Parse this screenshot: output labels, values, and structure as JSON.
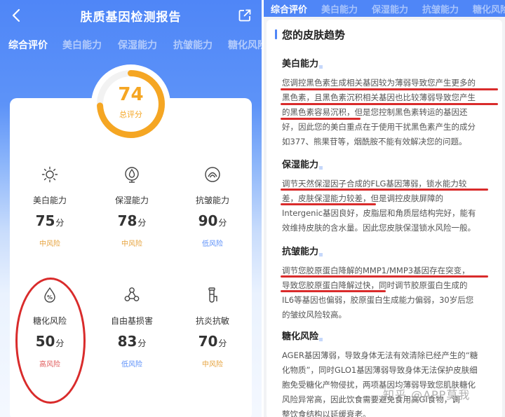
{
  "left": {
    "title": "肤质基因检测报告",
    "tabs": [
      "综合评价",
      "美白能力",
      "保湿能力",
      "抗皱能力",
      "糖化风险"
    ],
    "score": {
      "value": "74",
      "label": "总评分",
      "fraction": 0.74
    },
    "metrics": [
      {
        "icon": "sun-icon",
        "name": "美白能力",
        "score": "75",
        "unit": "分",
        "risk": "中风险",
        "risk_level": "mid"
      },
      {
        "icon": "water-drop-icon",
        "name": "保湿能力",
        "score": "78",
        "unit": "分",
        "risk": "中风险",
        "risk_level": "mid"
      },
      {
        "icon": "wrinkle-face-icon",
        "name": "抗皱能力",
        "score": "90",
        "unit": "分",
        "risk": "低风险",
        "risk_level": "low"
      },
      {
        "icon": "sugar-drop-icon",
        "name": "糖化风险",
        "score": "50",
        "unit": "分",
        "risk": "高风险",
        "risk_level": "high"
      },
      {
        "icon": "molecule-icon",
        "name": "自由基损害",
        "score": "83",
        "unit": "分",
        "risk": "低风险",
        "risk_level": "low"
      },
      {
        "icon": "shield-flask-icon",
        "name": "抗炎抗敏",
        "score": "70",
        "unit": "分",
        "risk": "中风险",
        "risk_level": "mid"
      }
    ]
  },
  "right": {
    "tabs": [
      "综合评价",
      "美白能力",
      "保湿能力",
      "抗皱能力",
      "糖化风险"
    ],
    "section_title": "您的皮肤趋势",
    "sections": [
      {
        "title": "美白能力",
        "lines": [
          "您调控黑色素生成相关基因较为薄弱导致您产生更多的",
          "黑色素，且黑色素沉积相关基因也比较薄弱导致您产生",
          "的黑色素容易沉积，但是您控制黑色素转运的基因还",
          "好，因此您的美白重点在于使用干扰黑色素产生的成分",
          "如377、熊果苷等，烟酰胺不能有效解决您的问题。"
        ]
      },
      {
        "title": "保湿能力",
        "lines": [
          "调节天然保湿因子合成的FLG基因薄弱，锁水能力较",
          "差，皮肤保湿能力较差，但是调控皮肤屏障的",
          "Intergenic基因良好，皮脂层和角质层结构完好，能有",
          "效维持皮肤的含水量。因此您皮肤保湿锁水风险一般。"
        ]
      },
      {
        "title": "抗皱能力",
        "lines": [
          "调节您胶原蛋白降解的MMP1/MMP3基因存在突变，",
          "导致您胶原蛋白降解过快，同时调节胶原蛋白生成的",
          "IL6等基因也偏弱，胶原蛋白生成能力偏弱，30岁后您",
          "的皱纹风险较高。"
        ]
      },
      {
        "title": "糖化风险",
        "lines": [
          "AGER基因薄弱，导致身体无法有效清除已经产生的“糖",
          "化物质”，同时GLO1基因薄弱导致身体无法保护皮肤细",
          "胞免受糖化产物侵扰，两项基因均薄弱导致您肌肤糖化",
          "风险异常高，因此饮食需要避免食用高GI食物，调",
          "整饮食结构以延缓衰老。"
        ]
      }
    ],
    "watermark": "知乎 @APP莫我"
  },
  "colors": {
    "primary_blue": "#4f86f7",
    "score_orange": "#f5a623",
    "risk_mid": "#e6a23c",
    "risk_low": "#5b8ff9",
    "risk_high": "#e05a5a",
    "annotation_red": "#d92b2b"
  }
}
